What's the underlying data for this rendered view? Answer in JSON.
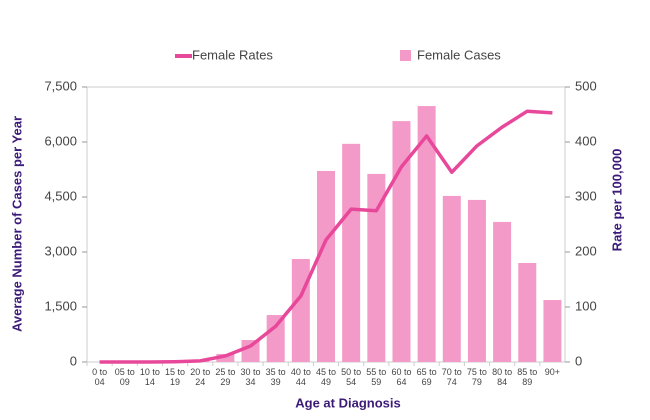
{
  "chart_data": {
    "type": "bar",
    "x_label": "Age at Diagnosis",
    "y_label": "Average Number of Cases per Year",
    "y2_label": "Rate per 100,000",
    "categories": [
      "0 to 04",
      "05 to 09",
      "10 to 14",
      "15 to 19",
      "20 to 24",
      "25 to 29",
      "30 to 34",
      "35 to 39",
      "40 to 44",
      "45 to 49",
      "50 to 54",
      "55 to 59",
      "60 to 64",
      "65 to 69",
      "70 to 74",
      "75 to 79",
      "80 to 84",
      "85 to 89",
      "90+"
    ],
    "series": [
      {
        "name": "Female Rates",
        "type": "line",
        "axis": "y2",
        "color": "#e8489a",
        "values": [
          0,
          0,
          0,
          0.5,
          2,
          11,
          29,
          65,
          120,
          222,
          278,
          275,
          355,
          411,
          345,
          393,
          427,
          456,
          453
        ]
      },
      {
        "name": "Female Cases",
        "type": "bar",
        "color": "#f49ac9",
        "values": [
          0,
          0,
          0,
          5,
          50,
          220,
          600,
          1280,
          2810,
          5210,
          5950,
          5130,
          6570,
          6980,
          4530,
          4420,
          3820,
          2700,
          1690
        ]
      }
    ],
    "ylim": [
      0,
      7500
    ],
    "yticks": [
      0,
      {
        "value": 1500,
        "label": "1,500"
      },
      {
        "value": 3000,
        "label": "3,000"
      },
      {
        "value": 4500,
        "label": "4,500"
      },
      {
        "value": 6000,
        "label": "6,000"
      },
      {
        "value": 7500,
        "label": "7,500"
      }
    ],
    "y2lim": [
      0,
      500
    ],
    "y2ticks": [
      0,
      100,
      200,
      300,
      400,
      500
    ]
  }
}
